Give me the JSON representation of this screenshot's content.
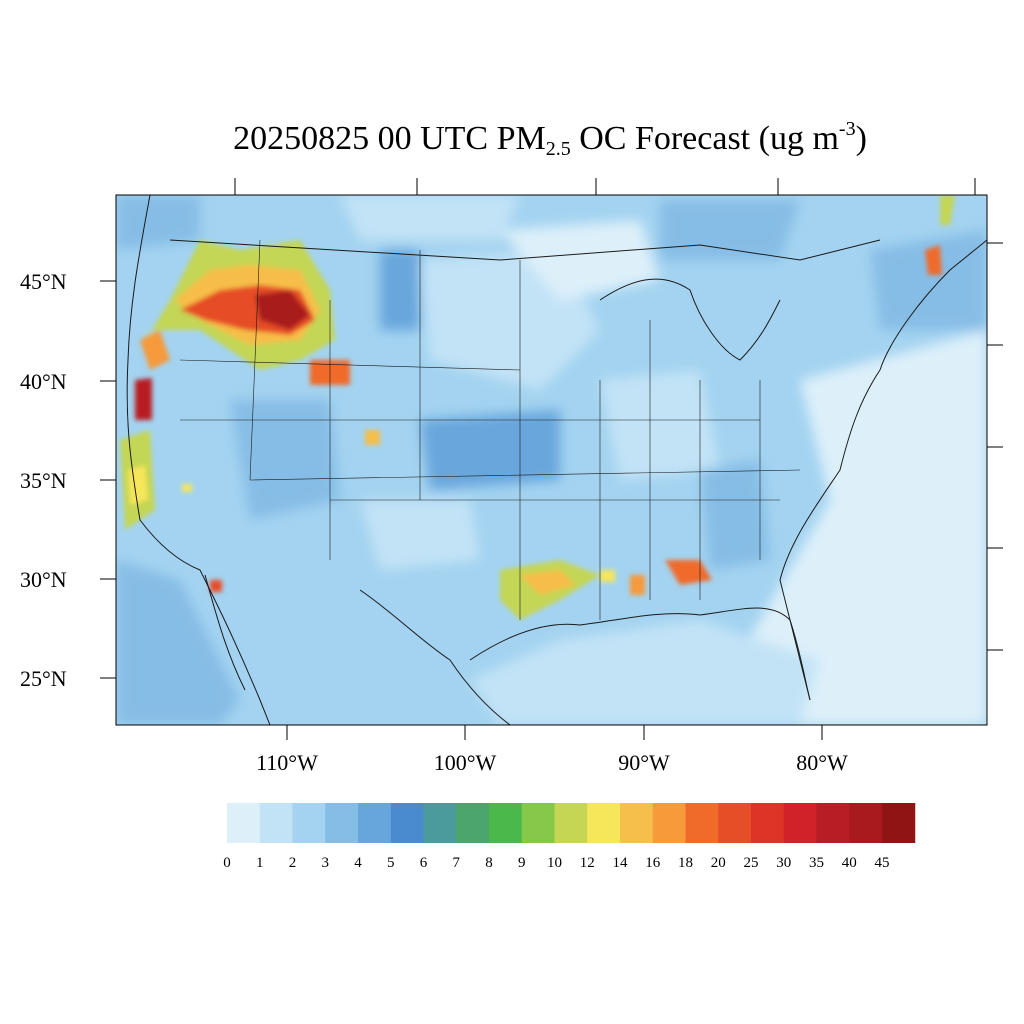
{
  "title": {
    "prefix": "20250825 00 UTC PM",
    "sub": "2.5",
    "middle": " OC Forecast (ug m",
    "sup": "-3",
    "suffix": ")"
  },
  "map": {
    "projection": "lambert-conformal",
    "region": "CONUS",
    "lat_labels": [
      "45°N",
      "40°N",
      "35°N",
      "30°N",
      "25°N"
    ],
    "lon_labels": [
      "110°W",
      "100°W",
      "90°W",
      "80°W"
    ]
  },
  "colorbar": {
    "labels": [
      "0",
      "1",
      "2",
      "3",
      "4",
      "5",
      "6",
      "7",
      "8",
      "9",
      "10",
      "12",
      "14",
      "16",
      "18",
      "20",
      "25",
      "30",
      "35",
      "40",
      "45"
    ],
    "colors": [
      "#ddf0fa",
      "#c2e3f6",
      "#a3d3f0",
      "#86bde6",
      "#67a6dc",
      "#4a8bd0",
      "#4a9c9c",
      "#4aa66a",
      "#4ab84a",
      "#86c84a",
      "#c4d654",
      "#f6e65a",
      "#f6be4a",
      "#f69a3a",
      "#f06a2a",
      "#e64e28",
      "#dc3426",
      "#d02228",
      "#b81c24",
      "#a81a1e",
      "#901414"
    ]
  }
}
